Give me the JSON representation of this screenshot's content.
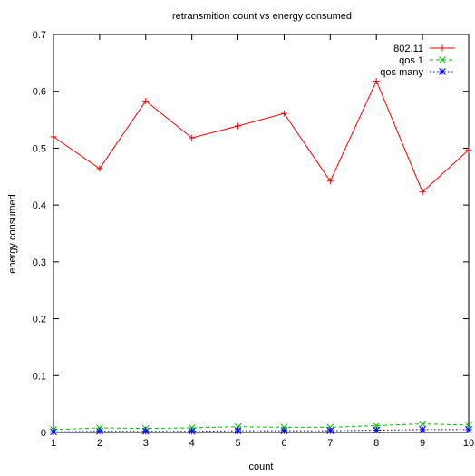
{
  "chart_data": {
    "type": "line",
    "title": "retransmition count  vs energy consumed",
    "xlabel": "count",
    "ylabel": "energy consumed",
    "xlim": [
      1,
      10
    ],
    "ylim": [
      0,
      0.7
    ],
    "x": [
      1,
      2,
      3,
      4,
      5,
      6,
      7,
      8,
      9,
      10
    ],
    "xticks": [
      "1",
      "2",
      "3",
      "4",
      "5",
      "6",
      "7",
      "8",
      "9",
      "10"
    ],
    "yticks": [
      "0",
      "0.1",
      "0.2",
      "0.3",
      "0.4",
      "0.5",
      "0.6",
      "0.7"
    ],
    "legend_position": "top-right",
    "grid": false,
    "series": [
      {
        "name": "802.11",
        "color": "#ff0000",
        "marker": "plus",
        "dash": "solid",
        "values": [
          0.52,
          0.464,
          0.583,
          0.518,
          0.539,
          0.561,
          0.442,
          0.618,
          0.423,
          0.497
        ]
      },
      {
        "name": "qos 1",
        "color": "#00c000",
        "marker": "cross",
        "dash": "dashed",
        "values": [
          0.005,
          0.008,
          0.007,
          0.008,
          0.01,
          0.009,
          0.009,
          0.012,
          0.015,
          0.013
        ]
      },
      {
        "name": "qos many",
        "color": "#0000ff",
        "marker": "star",
        "dash": "dotted",
        "values": [
          0.001,
          0.002,
          0.002,
          0.002,
          0.003,
          0.003,
          0.003,
          0.004,
          0.005,
          0.005
        ]
      }
    ]
  }
}
